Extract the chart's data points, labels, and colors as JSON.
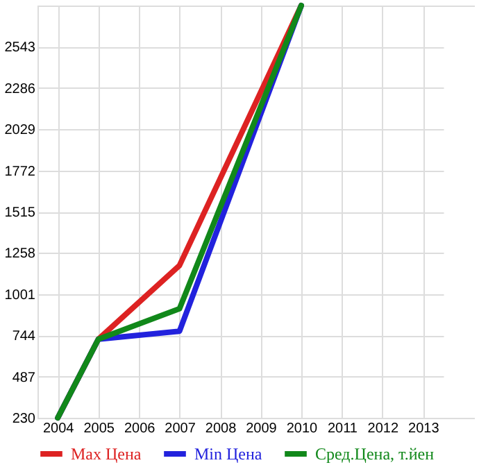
{
  "chart_data": {
    "type": "line",
    "categories": [
      "2004",
      "2005",
      "2006",
      "2007",
      "2008",
      "2009",
      "2010",
      "2011",
      "2012",
      "2013"
    ],
    "series": [
      {
        "name": "Max Цена",
        "color": "#dd2222",
        "values": [
          230,
          720,
          null,
          1180,
          null,
          null,
          2800,
          null,
          null,
          null
        ]
      },
      {
        "name": "Min Цена",
        "color": "#2222dd",
        "values": [
          230,
          720,
          null,
          770,
          null,
          null,
          2800,
          null,
          null,
          null
        ]
      },
      {
        "name": "Сред.Цена, т.йен",
        "color": "#11881a",
        "values": [
          230,
          720,
          null,
          910,
          null,
          null,
          2800,
          null,
          null,
          null
        ]
      }
    ],
    "ylim": [
      230,
      2800
    ],
    "yticks": [
      230,
      487,
      744,
      1001,
      1258,
      1515,
      1772,
      2029,
      2286,
      2543
    ],
    "grid": true,
    "legend": "bottom",
    "marker": "none",
    "line_style": "solid"
  }
}
